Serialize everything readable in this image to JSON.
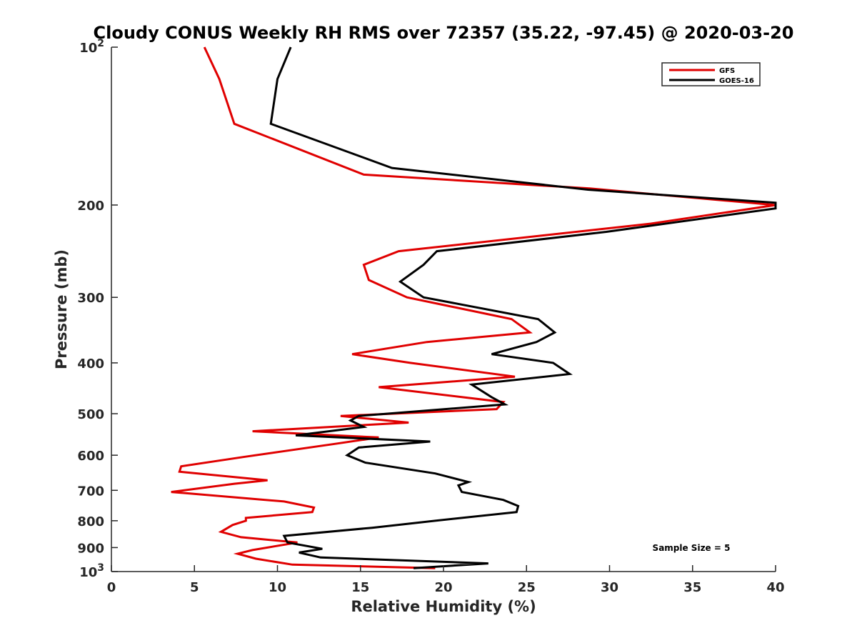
{
  "chart_data": {
    "type": "line",
    "title": "Cloudy CONUS Weekly RH RMS over 72357 (35.22, -97.45) @ 2020-03-20",
    "xlabel": "Relative Humidity (%)",
    "ylabel": "Pressure (mb)",
    "xlim": [
      0,
      40
    ],
    "ylim": [
      100,
      1000
    ],
    "y_scale": "log",
    "y_reversed": true,
    "x_ticks": [
      "0",
      "5",
      "10",
      "15",
      "20",
      "25",
      "30",
      "35",
      "40"
    ],
    "y_ticks": [
      {
        "value": 100,
        "base": "10",
        "exp": "2"
      },
      {
        "value": 200,
        "label": "200"
      },
      {
        "value": 300,
        "label": "300"
      },
      {
        "value": 400,
        "label": "400"
      },
      {
        "value": 500,
        "label": "500"
      },
      {
        "value": 600,
        "label": "600"
      },
      {
        "value": 700,
        "label": "700"
      },
      {
        "value": 800,
        "label": "800"
      },
      {
        "value": 900,
        "label": "900"
      },
      {
        "value": 1000,
        "base": "10",
        "exp": "3"
      }
    ],
    "grid": false,
    "legend_position": "top-right",
    "series": [
      {
        "name": "GFS",
        "color": "#e00000",
        "points": [
          [
            5.6,
            100
          ],
          [
            6.5,
            115
          ],
          [
            7.4,
            140
          ],
          [
            15.2,
            175
          ],
          [
            28.8,
            186
          ],
          [
            40.0,
            200
          ],
          [
            32.5,
            217
          ],
          [
            17.3,
            245
          ],
          [
            15.2,
            260
          ],
          [
            15.5,
            278
          ],
          [
            17.8,
            300
          ],
          [
            24.1,
            330
          ],
          [
            25.2,
            350
          ],
          [
            19.0,
            365
          ],
          [
            14.5,
            385
          ],
          [
            18.0,
            400
          ],
          [
            24.3,
            425
          ],
          [
            16.1,
            445
          ],
          [
            23.6,
            475
          ],
          [
            23.2,
            490
          ],
          [
            13.8,
            505
          ],
          [
            17.9,
            520
          ],
          [
            8.5,
            540
          ],
          [
            16.1,
            555
          ],
          [
            13.6,
            570
          ],
          [
            7.9,
            605
          ],
          [
            4.2,
            630
          ],
          [
            4.1,
            645
          ],
          [
            9.4,
            670
          ],
          [
            7.4,
            680
          ],
          [
            3.6,
            705
          ],
          [
            10.4,
            735
          ],
          [
            12.2,
            755
          ],
          [
            12.1,
            770
          ],
          [
            8.1,
            790
          ],
          [
            8.1,
            800
          ],
          [
            7.3,
            815
          ],
          [
            6.6,
            840
          ],
          [
            7.8,
            860
          ],
          [
            11.2,
            880
          ],
          [
            8.5,
            910
          ],
          [
            7.6,
            925
          ],
          [
            8.7,
            945
          ],
          [
            10.9,
            970
          ],
          [
            19.5,
            985
          ]
        ]
      },
      {
        "name": "GOES-16",
        "color": "#000000",
        "points": [
          [
            10.8,
            100
          ],
          [
            10.0,
            115
          ],
          [
            9.6,
            140
          ],
          [
            16.9,
            170
          ],
          [
            28.7,
            187
          ],
          [
            40.0,
            198
          ],
          [
            40.0,
            203
          ],
          [
            29.8,
            225
          ],
          [
            19.6,
            245
          ],
          [
            18.8,
            260
          ],
          [
            17.4,
            280
          ],
          [
            18.8,
            300
          ],
          [
            25.7,
            330
          ],
          [
            26.7,
            350
          ],
          [
            25.6,
            365
          ],
          [
            22.9,
            385
          ],
          [
            26.6,
            400
          ],
          [
            27.6,
            420
          ],
          [
            21.7,
            440
          ],
          [
            22.9,
            465
          ],
          [
            23.7,
            480
          ],
          [
            14.9,
            505
          ],
          [
            14.4,
            515
          ],
          [
            15.2,
            530
          ],
          [
            11.1,
            550
          ],
          [
            19.2,
            565
          ],
          [
            14.9,
            580
          ],
          [
            14.2,
            600
          ],
          [
            15.3,
            620
          ],
          [
            19.5,
            650
          ],
          [
            21.5,
            675
          ],
          [
            20.9,
            685
          ],
          [
            21.1,
            705
          ],
          [
            23.6,
            730
          ],
          [
            24.5,
            750
          ],
          [
            24.4,
            770
          ],
          [
            19.5,
            800
          ],
          [
            15.7,
            825
          ],
          [
            10.4,
            855
          ],
          [
            10.6,
            880
          ],
          [
            12.7,
            905
          ],
          [
            11.3,
            920
          ],
          [
            12.6,
            940
          ],
          [
            22.7,
            965
          ],
          [
            18.2,
            985
          ]
        ]
      }
    ],
    "annotations": [
      "Sample Size = 5"
    ]
  }
}
